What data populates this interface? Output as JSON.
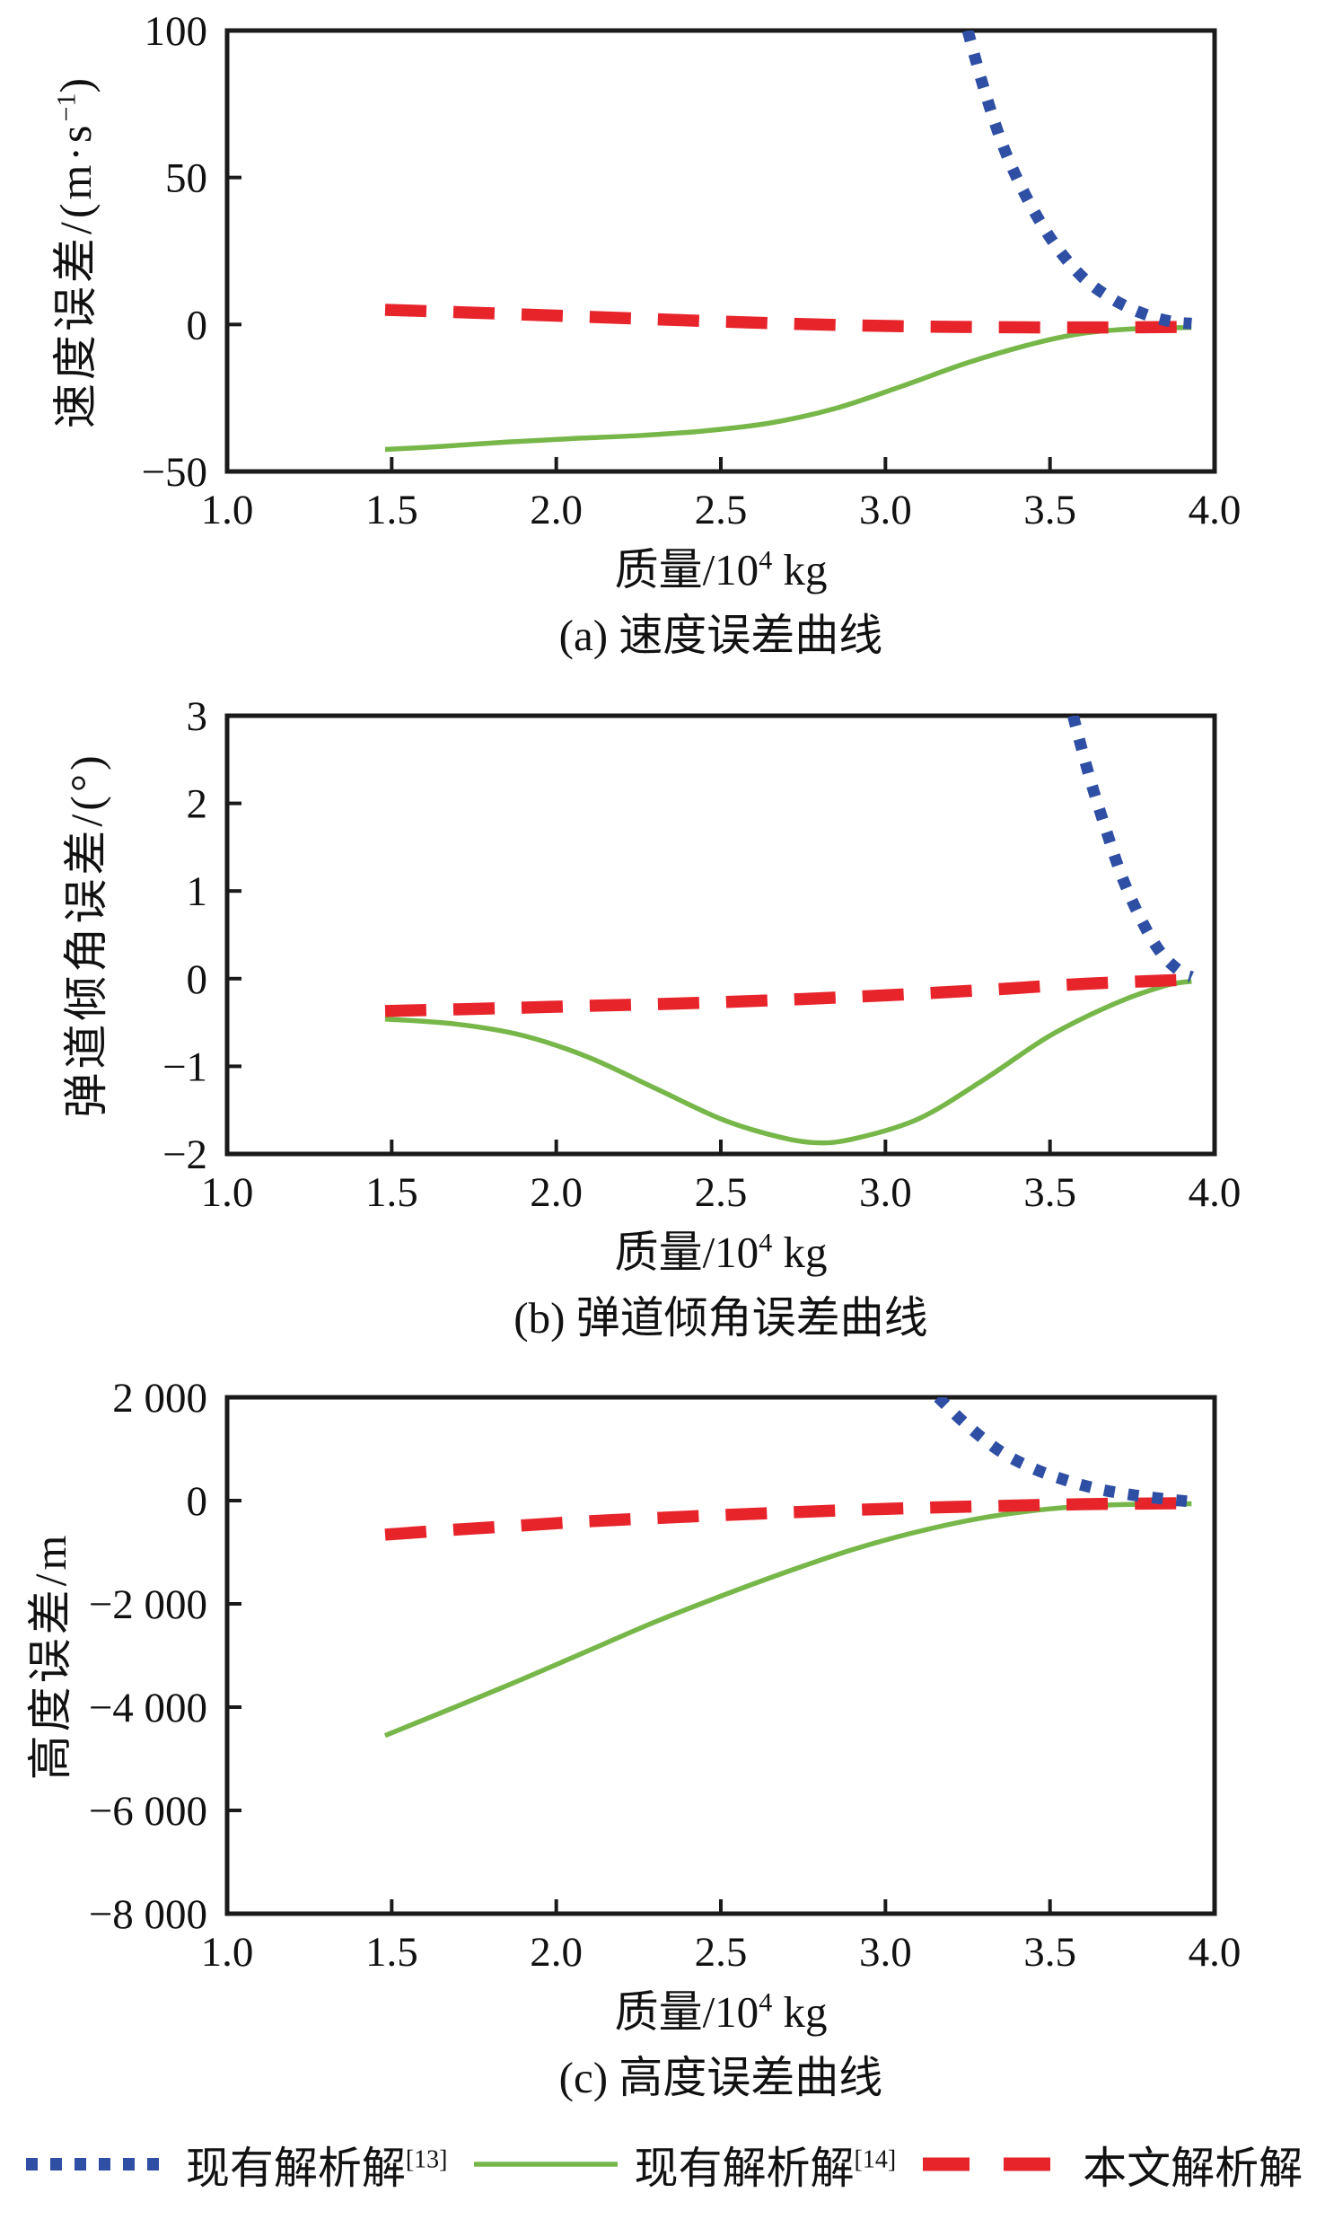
{
  "frame_color": "#1a1a1a",
  "chart_data": [
    {
      "type": "line",
      "caption": "(a) 速度误差曲线",
      "xlabel": {
        "pre": "质量/10",
        "sup": "4",
        "post": " kg"
      },
      "ylabel": {
        "pre": "速度误差/(m·s",
        "sup": "−1",
        "post": ")"
      },
      "xlim": [
        1.0,
        4.0
      ],
      "ylim": [
        -50,
        100
      ],
      "grid": false,
      "xticks": {
        "values": [
          1.0,
          1.5,
          2.0,
          2.5,
          3.0,
          3.5,
          4.0
        ],
        "labels": [
          "1.0",
          "1.5",
          "2.0",
          "2.5",
          "3.0",
          "3.5",
          "4.0"
        ]
      },
      "yticks": {
        "values": [
          -50,
          0,
          50,
          100
        ],
        "labels": [
          "−50",
          "0",
          "50",
          "100"
        ]
      },
      "series": [
        {
          "id": "ref14",
          "name": "现有解析解[14]",
          "color": "#77B74A",
          "line_style": "solid",
          "points": [
            [
              1.48,
              -42.5
            ],
            [
              1.65,
              -41.5
            ],
            [
              1.85,
              -40.0
            ],
            [
              2.05,
              -38.8
            ],
            [
              2.25,
              -37.8
            ],
            [
              2.45,
              -36.2
            ],
            [
              2.65,
              -33.5
            ],
            [
              2.85,
              -28.5
            ],
            [
              3.05,
              -21.0
            ],
            [
              3.25,
              -13.0
            ],
            [
              3.45,
              -6.5
            ],
            [
              3.6,
              -3.0
            ],
            [
              3.75,
              -1.5
            ],
            [
              3.93,
              -1.0
            ]
          ]
        },
        {
          "id": "proposed",
          "name": "本文解析解",
          "color": "#E8242B",
          "line_style": "dashed",
          "points": [
            [
              1.48,
              5.0
            ],
            [
              1.7,
              4.2
            ],
            [
              1.95,
              3.2
            ],
            [
              2.2,
              2.2
            ],
            [
              2.45,
              1.2
            ],
            [
              2.7,
              0.3
            ],
            [
              2.95,
              -0.4
            ],
            [
              3.2,
              -0.8
            ],
            [
              3.5,
              -1.0
            ],
            [
              3.7,
              -1.0
            ],
            [
              3.93,
              -0.8
            ]
          ]
        },
        {
          "id": "ref13",
          "name": "现有解析解[13]",
          "color": "#2E4FA3",
          "line_style": "dotted",
          "points": [
            [
              3.25,
              100
            ],
            [
              3.3,
              80
            ],
            [
              3.36,
              60
            ],
            [
              3.43,
              43
            ],
            [
              3.51,
              28
            ],
            [
              3.6,
              16
            ],
            [
              3.7,
              8
            ],
            [
              3.8,
              3
            ],
            [
              3.88,
              0.8
            ],
            [
              3.93,
              0.3
            ]
          ]
        }
      ]
    },
    {
      "type": "line",
      "caption": "(b) 弹道倾角误差曲线",
      "xlabel": {
        "pre": "质量/10",
        "sup": "4",
        "post": " kg"
      },
      "ylabel": {
        "pre": "弹道倾角误差/(°)",
        "sup": "",
        "post": ""
      },
      "xlim": [
        1.0,
        4.0
      ],
      "ylim": [
        -2,
        3
      ],
      "grid": false,
      "xticks": {
        "values": [
          1.0,
          1.5,
          2.0,
          2.5,
          3.0,
          3.5,
          4.0
        ],
        "labels": [
          "1.0",
          "1.5",
          "2.0",
          "2.5",
          "3.0",
          "3.5",
          "4.0"
        ]
      },
      "yticks": {
        "values": [
          -2,
          -1,
          0,
          1,
          2,
          3
        ],
        "labels": [
          "−2",
          "−1",
          "0",
          "1",
          "2",
          "3"
        ]
      },
      "series": [
        {
          "id": "ref14",
          "name": "现有解析解[14]",
          "color": "#77B74A",
          "line_style": "solid",
          "points": [
            [
              1.48,
              -0.46
            ],
            [
              1.7,
              -0.52
            ],
            [
              1.9,
              -0.65
            ],
            [
              2.1,
              -0.9
            ],
            [
              2.3,
              -1.25
            ],
            [
              2.5,
              -1.6
            ],
            [
              2.65,
              -1.78
            ],
            [
              2.78,
              -1.87
            ],
            [
              2.9,
              -1.83
            ],
            [
              3.1,
              -1.6
            ],
            [
              3.3,
              -1.15
            ],
            [
              3.5,
              -0.65
            ],
            [
              3.7,
              -0.28
            ],
            [
              3.85,
              -0.08
            ],
            [
              3.93,
              -0.03
            ]
          ]
        },
        {
          "id": "proposed",
          "name": "本文解析解",
          "color": "#E8242B",
          "line_style": "dashed",
          "points": [
            [
              1.48,
              -0.37
            ],
            [
              1.8,
              -0.34
            ],
            [
              2.1,
              -0.31
            ],
            [
              2.4,
              -0.28
            ],
            [
              2.7,
              -0.24
            ],
            [
              3.0,
              -0.19
            ],
            [
              3.3,
              -0.13
            ],
            [
              3.6,
              -0.06
            ],
            [
              3.93,
              -0.01
            ]
          ]
        },
        {
          "id": "ref13",
          "name": "现有解析解[13]",
          "color": "#2E4FA3",
          "line_style": "dotted",
          "points": [
            [
              3.57,
              3.0
            ],
            [
              3.62,
              2.3
            ],
            [
              3.67,
              1.7
            ],
            [
              3.72,
              1.15
            ],
            [
              3.78,
              0.65
            ],
            [
              3.84,
              0.28
            ],
            [
              3.9,
              0.07
            ],
            [
              3.93,
              0.02
            ]
          ]
        }
      ]
    },
    {
      "type": "line",
      "caption": "(c) 高度误差曲线",
      "xlabel": {
        "pre": "质量/10",
        "sup": "4",
        "post": " kg"
      },
      "ylabel": {
        "pre": "高度误差/m",
        "sup": "",
        "post": ""
      },
      "xlim": [
        1.0,
        4.0
      ],
      "ylim": [
        -8000,
        2000
      ],
      "grid": false,
      "xticks": {
        "values": [
          1.0,
          1.5,
          2.0,
          2.5,
          3.0,
          3.5,
          4.0
        ],
        "labels": [
          "1.0",
          "1.5",
          "2.0",
          "2.5",
          "3.0",
          "3.5",
          "4.0"
        ]
      },
      "yticks": {
        "values": [
          -8000,
          -6000,
          -4000,
          -2000,
          0,
          2000
        ],
        "labels": [
          "−8 000",
          "−6 000",
          "−4 000",
          "−2 000",
          "0",
          "2 000"
        ]
      },
      "series": [
        {
          "id": "ref14",
          "name": "现有解析解[14]",
          "color": "#77B74A",
          "line_style": "solid",
          "points": [
            [
              1.48,
              -4550
            ],
            [
              1.7,
              -3980
            ],
            [
              1.9,
              -3450
            ],
            [
              2.1,
              -2900
            ],
            [
              2.3,
              -2350
            ],
            [
              2.5,
              -1850
            ],
            [
              2.7,
              -1380
            ],
            [
              2.9,
              -950
            ],
            [
              3.1,
              -600
            ],
            [
              3.3,
              -330
            ],
            [
              3.5,
              -160
            ],
            [
              3.7,
              -80
            ],
            [
              3.93,
              -60
            ]
          ]
        },
        {
          "id": "proposed",
          "name": "本文解析解",
          "color": "#E8242B",
          "line_style": "dashed",
          "points": [
            [
              1.48,
              -660
            ],
            [
              1.7,
              -560
            ],
            [
              1.9,
              -480
            ],
            [
              2.1,
              -400
            ],
            [
              2.4,
              -310
            ],
            [
              2.7,
              -230
            ],
            [
              3.0,
              -160
            ],
            [
              3.3,
              -110
            ],
            [
              3.6,
              -70
            ],
            [
              3.93,
              -50
            ]
          ]
        },
        {
          "id": "ref13",
          "name": "现有解析解[13]",
          "color": "#2E4FA3",
          "line_style": "dotted",
          "points": [
            [
              3.16,
              2000
            ],
            [
              3.25,
              1450
            ],
            [
              3.35,
              950
            ],
            [
              3.45,
              620
            ],
            [
              3.55,
              390
            ],
            [
              3.65,
              220
            ],
            [
              3.75,
              110
            ],
            [
              3.85,
              30
            ],
            [
              3.93,
              -20
            ]
          ]
        }
      ]
    }
  ],
  "legend": {
    "items": [
      {
        "label": "现有解析解",
        "sup": "[13]",
        "color": "#2E4FA3",
        "line_style": "dotted"
      },
      {
        "label": "现有解析解",
        "sup": "[14]",
        "color": "#77B74A",
        "line_style": "solid"
      },
      {
        "label": "本文解析解",
        "sup": "",
        "color": "#E8242B",
        "line_style": "dashed"
      }
    ]
  }
}
